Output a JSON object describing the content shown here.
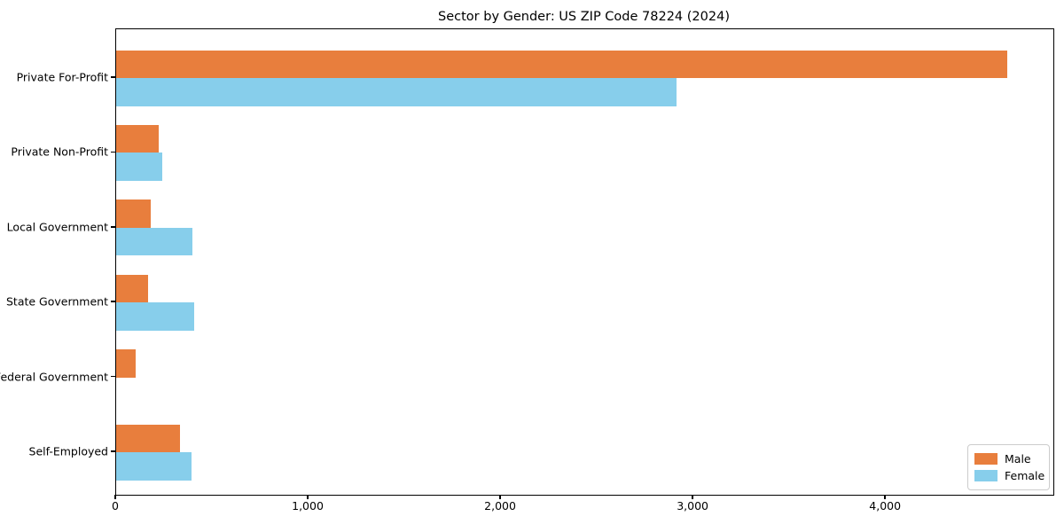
{
  "chart_data": {
    "type": "bar",
    "orientation": "horizontal",
    "title": "Sector by Gender: US ZIP Code 78224 (2024)",
    "categories": [
      "Private For-Profit",
      "Private Non-Profit",
      "Local Government",
      "State Government",
      "Federal Government",
      "Self-Employed"
    ],
    "series": [
      {
        "name": "Male",
        "color": "#e87e3d",
        "values": [
          4630,
          220,
          180,
          165,
          100,
          330
        ]
      },
      {
        "name": "Female",
        "color": "#87ceeb",
        "values": [
          2910,
          240,
          395,
          405,
          0,
          390
        ]
      }
    ],
    "xlabel": "",
    "ylabel": "",
    "xlim": [
      0,
      4870
    ],
    "x_ticks": [
      {
        "value": 0,
        "label": "0"
      },
      {
        "value": 1000,
        "label": "1,000"
      },
      {
        "value": 2000,
        "label": "2,000"
      },
      {
        "value": 3000,
        "label": "3,000"
      },
      {
        "value": 4000,
        "label": "4,000"
      }
    ],
    "grid": false,
    "legend_position": "lower right"
  }
}
